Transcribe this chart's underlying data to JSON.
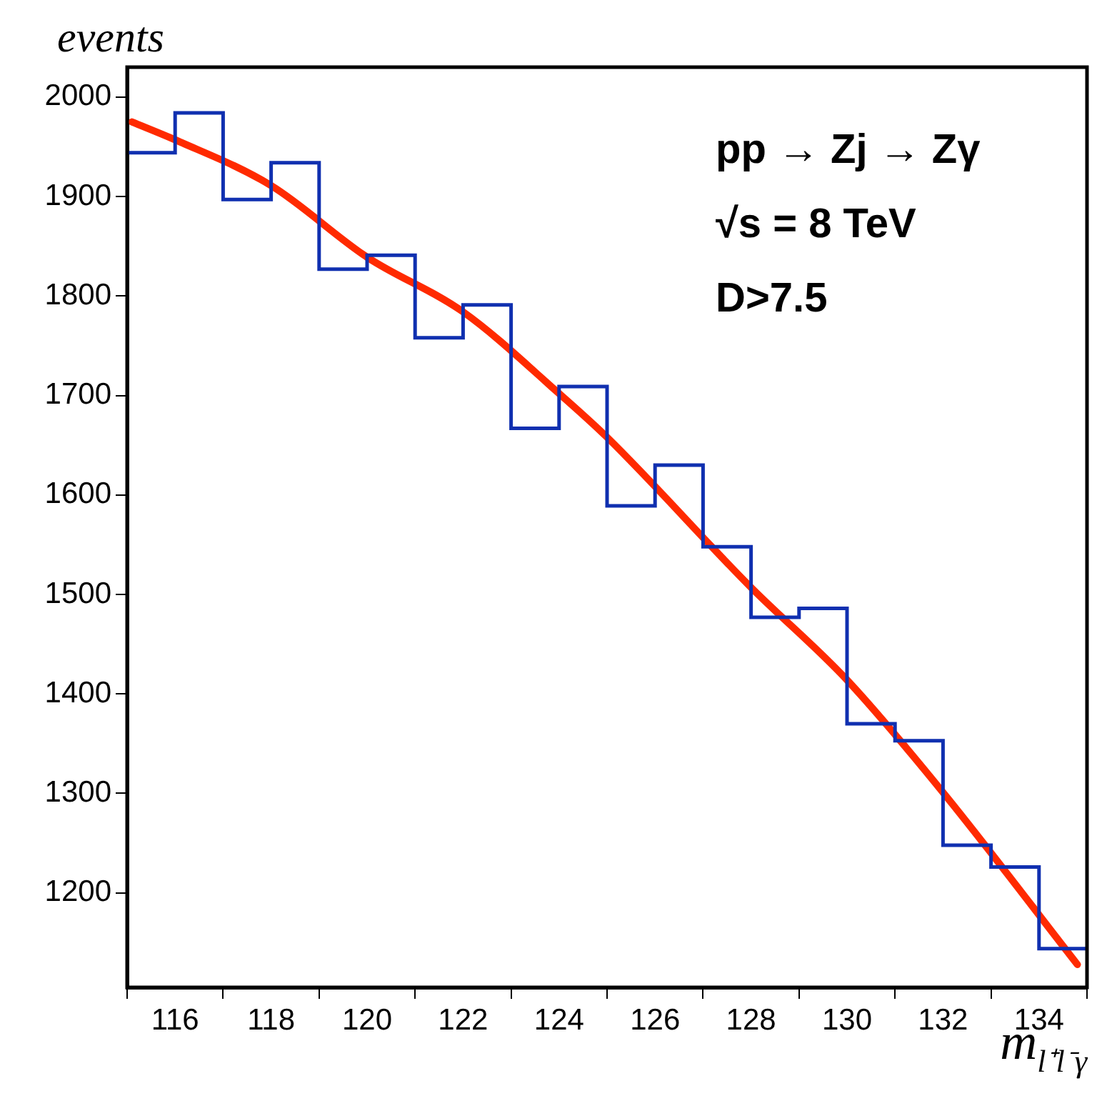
{
  "chart_data": {
    "type": "histogram",
    "ylabel": "events",
    "xlabel": "m$_{l⁺l⁻γ}$",
    "annotations": [
      "pp → Zj → Zγ",
      "√s = 8 TeV",
      "D>7.5"
    ],
    "bins": [
      115,
      116,
      117,
      118,
      119,
      120,
      121,
      122,
      123,
      124,
      125,
      126,
      127,
      128,
      129,
      130,
      131,
      132,
      133,
      134,
      135
    ],
    "values": [
      1944,
      1984,
      1897,
      1934,
      1827,
      1841,
      1758,
      1791,
      1667,
      1709,
      1589,
      1630,
      1548,
      1477,
      1486,
      1370,
      1353,
      1248,
      1226,
      1144
    ],
    "color": "#1030b0",
    "series": [
      {
        "type": "line",
        "color": "#ff2a00",
        "x": [
          115.1,
          116,
          118,
          120,
          122,
          124,
          125,
          128,
          130,
          132,
          134.8
        ],
        "values": [
          1975,
          1957,
          1911,
          1839,
          1784,
          1702,
          1658,
          1507,
          1414,
          1301,
          1128
        ]
      }
    ],
    "xlim": [
      115,
      135
    ],
    "ylim": [
      1105,
      2030
    ],
    "xticks": [
      116,
      118,
      120,
      122,
      124,
      126,
      128,
      130,
      132,
      134
    ],
    "yticks": [
      1200,
      1300,
      1400,
      1500,
      1600,
      1700,
      1800,
      1900,
      2000
    ],
    "grid": false,
    "legend": false
  }
}
